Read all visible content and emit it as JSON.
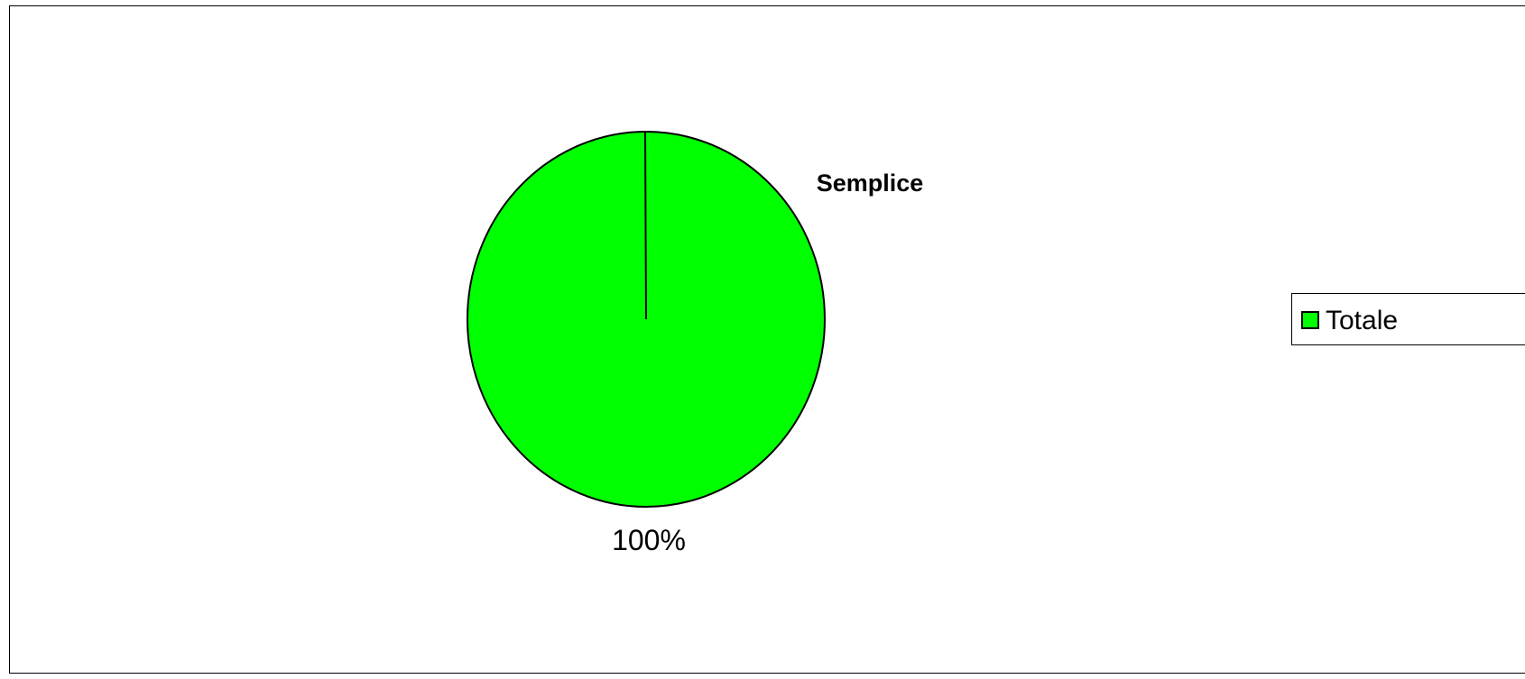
{
  "chart_data": {
    "type": "pie",
    "title": "",
    "categories": [
      "Semplice"
    ],
    "series": [
      {
        "name": "Totale",
        "values": [
          100
        ]
      }
    ],
    "data_labels": [
      "100%"
    ],
    "legend": {
      "position": "right",
      "entries": [
        "Totale"
      ]
    },
    "colors": {
      "slice": "#00ff00",
      "outline": "#000000",
      "border": "#000000",
      "background": "#ffffff"
    }
  }
}
